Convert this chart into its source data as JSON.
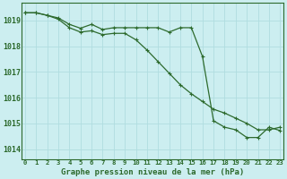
{
  "title": "Graphe pression niveau de la mer (hPa)",
  "background_color": "#cceef0",
  "grid_color": "#b0dde0",
  "line_color": "#2d6a2d",
  "x_labels": [
    "0",
    "1",
    "2",
    "3",
    "4",
    "5",
    "6",
    "7",
    "8",
    "9",
    "10",
    "11",
    "12",
    "13",
    "14",
    "15",
    "16",
    "17",
    "18",
    "19",
    "20",
    "21",
    "22",
    "23"
  ],
  "ylim": [
    1013.6,
    1019.7
  ],
  "yticks": [
    1014,
    1015,
    1016,
    1017,
    1018,
    1019
  ],
  "series1": [
    1019.3,
    1019.3,
    1019.2,
    1019.1,
    1018.85,
    1018.7,
    1018.85,
    1018.65,
    1018.72,
    1018.72,
    1018.72,
    1018.72,
    1018.72,
    1018.55,
    1018.72,
    1018.72,
    1017.6,
    1015.1,
    1014.85,
    1014.75,
    1014.45,
    1014.45,
    1014.85,
    1014.72
  ],
  "series2": [
    1019.3,
    1019.3,
    1019.2,
    1019.05,
    1018.72,
    1018.55,
    1018.6,
    1018.45,
    1018.5,
    1018.5,
    1018.25,
    1017.85,
    1017.4,
    1016.95,
    1016.5,
    1016.15,
    1015.85,
    1015.55,
    1015.4,
    1015.2,
    1015.0,
    1014.75,
    1014.75,
    1014.85
  ]
}
